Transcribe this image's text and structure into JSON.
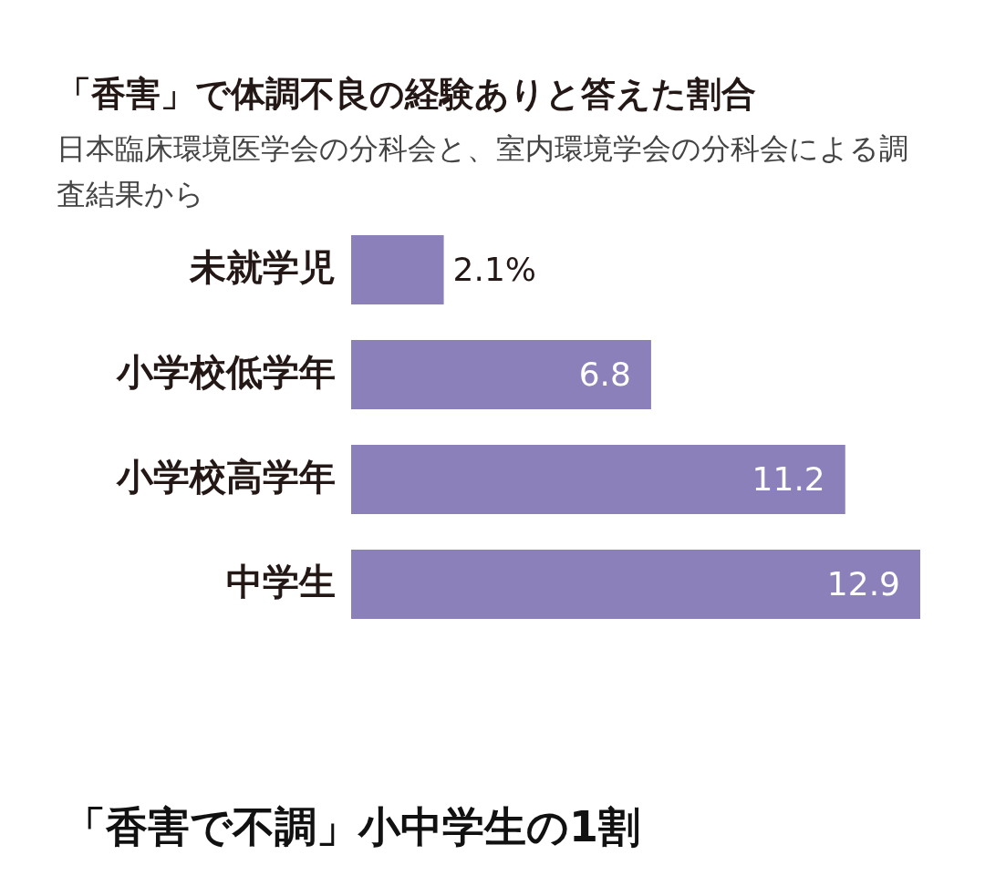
{
  "chart_data": {
    "type": "bar",
    "orientation": "horizontal",
    "title": "「香害」で体調不良の経験ありと答えた割合",
    "subtitle": "日本臨床環境医学会の分科会と、室内環境学会の分科会による調査結果から",
    "categories": [
      "未就学児",
      "小学校低学年",
      "小学校高学年",
      "中学生"
    ],
    "values": [
      2.1,
      6.8,
      11.2,
      12.9
    ],
    "value_labels": [
      "2.1%",
      "6.8",
      "11.2",
      "12.9"
    ],
    "color": "#8c80bb",
    "annotations": [
      "「香害で不調」小中学生の1割"
    ]
  }
}
